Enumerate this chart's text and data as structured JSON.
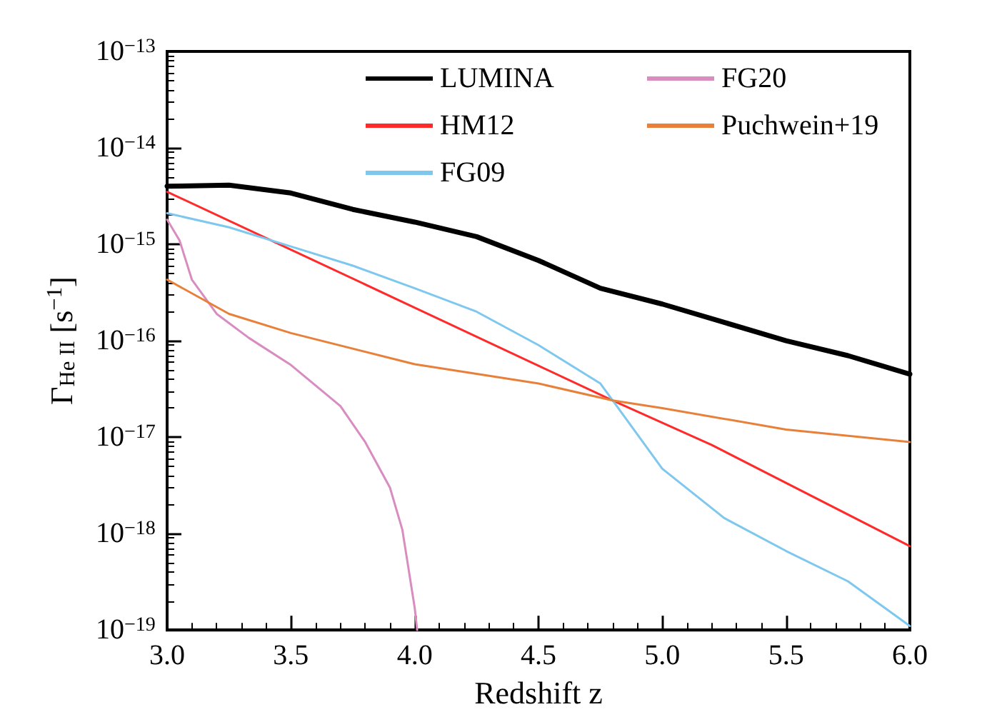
{
  "chart_data": {
    "type": "line",
    "xlabel": "Redshift z",
    "ylabel": "Γ$_{He II}$ [s$^{−1}$]",
    "log": "y",
    "xlim": [
      3.0,
      6.0
    ],
    "xticks": [
      {
        "value": 3,
        "label": "3.0"
      },
      {
        "value": 3.5,
        "label": "3.5"
      },
      {
        "value": 4,
        "label": "4.0"
      },
      {
        "value": 4.5,
        "label": "4.5"
      },
      {
        "value": 5,
        "label": "5.0"
      },
      {
        "value": 5.5,
        "label": "5.5"
      },
      {
        "value": 6,
        "label": "6.0"
      }
    ],
    "ylim": [
      1e-19,
      1e-13
    ],
    "yticks": [
      {
        "value": 1e-19,
        "label": "10$^{−19}$"
      },
      {
        "value": 1e-18,
        "label": "10$^{−18}$"
      },
      {
        "value": 1e-17,
        "label": "10$^{−17}$"
      },
      {
        "value": 1e-16,
        "label": "10$^{−16}$"
      },
      {
        "value": 1e-15,
        "label": "10$^{−15}$"
      },
      {
        "value": 1e-14,
        "label": "10$^{−14}$"
      },
      {
        "value": 1e-13,
        "label": "10$^{−13}$"
      }
    ],
    "grid": false,
    "legend": "top",
    "marker": "none",
    "line_style": "solid",
    "series": [
      {
        "name": "LUMINA",
        "color": "#000000",
        "x": [
          3.0,
          3.25,
          3.5,
          3.75,
          4.0,
          4.25,
          4.5,
          4.75,
          5.0,
          5.25,
          5.5,
          5.75,
          6.0
        ],
        "values": [
          4e-15,
          4.1e-15,
          3.4e-15,
          2.3e-15,
          1.7e-15,
          1.2e-15,
          6.8e-16,
          3.5e-16,
          2.4e-16,
          1.55e-16,
          1e-16,
          7e-17,
          4.5e-17
        ]
      },
      {
        "name": "HM12",
        "color": "#ff2a2a",
        "x": [
          3.0,
          3.5,
          4.0,
          4.5,
          4.8,
          5.2,
          6.0
        ],
        "values": [
          3.5e-15,
          8.8e-16,
          2.2e-16,
          5.5e-17,
          2.4e-17,
          8.3e-18,
          7.4e-19
        ]
      },
      {
        "name": "FG09",
        "color": "#7ec8ef",
        "x": [
          3.0,
          3.25,
          3.5,
          3.75,
          4.0,
          4.25,
          4.5,
          4.75,
          4.8,
          5.0,
          5.25,
          5.5,
          5.75,
          6.0
        ],
        "values": [
          2.1e-15,
          1.5e-15,
          9.5e-16,
          6e-16,
          3.5e-16,
          2e-16,
          9e-17,
          3.6e-17,
          2.4e-17,
          4.7e-18,
          1.45e-18,
          6.6e-19,
          3.2e-19,
          1.1e-19
        ]
      },
      {
        "name": "FG20",
        "color": "#d98cc0",
        "x": [
          3.0,
          3.05,
          3.1,
          3.2,
          3.33,
          3.5,
          3.7,
          3.8,
          3.9,
          3.95,
          4.0,
          4.01
        ],
        "values": [
          1.8e-15,
          1.1e-15,
          4.3e-16,
          1.9e-16,
          1.07e-16,
          5.6e-17,
          2.1e-17,
          8.9e-18,
          3e-18,
          1.1e-18,
          1.7e-19,
          1e-19
        ]
      },
      {
        "name": "Puchwein+19",
        "color": "#e8803a",
        "x": [
          3.0,
          3.25,
          3.5,
          4.0,
          4.5,
          4.8,
          5.0,
          5.5,
          6.0
        ],
        "values": [
          4.3e-16,
          1.9e-16,
          1.2e-16,
          5.7e-17,
          3.6e-17,
          2.4e-17,
          2e-17,
          1.2e-17,
          8.9e-18
        ]
      }
    ]
  }
}
